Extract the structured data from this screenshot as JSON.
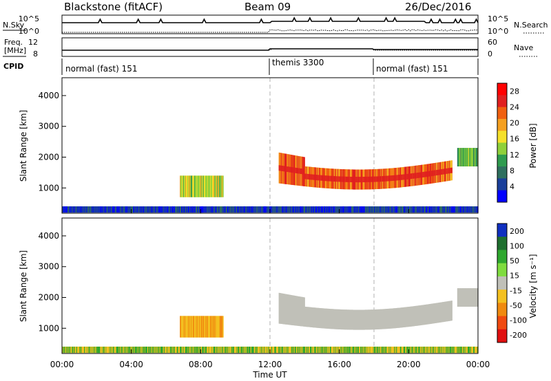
{
  "header": {
    "title": "Blackstone (fitACF)",
    "beam": "Beam 09",
    "date": "26/Dec/2016"
  },
  "top_panels": {
    "nsky_label": "N.Sky",
    "nsearch_label": "N.Search",
    "left_ticks": [
      "10^5",
      "10^0"
    ],
    "right_ticks": [
      "10^5",
      "10^0"
    ],
    "freq_label_1": "Freq.",
    "freq_label_2": "[MHz]",
    "freq_ticks": [
      "12",
      "8"
    ],
    "nave_label": "Nave",
    "nave_ticks": [
      "60",
      "0"
    ],
    "cpid_label": "CPID",
    "cpid_segments": [
      "normal (fast) 151",
      "themis 3300",
      "normal (fast) 151"
    ]
  },
  "colors": {
    "power_scale": [
      "#0000ff",
      "#1a3f9a",
      "#2e6f5e",
      "#2e9b4e",
      "#8fd03a",
      "#f5e02a",
      "#f5a020",
      "#f06010",
      "#e02020",
      "#ff0000"
    ],
    "velocity_scale": [
      "#1030c0",
      "#1f6f2f",
      "#2fa82f",
      "#7fdc3f",
      "#c0c0b8",
      "#f4c020",
      "#f08a10",
      "#f04a10",
      "#e01010"
    ]
  },
  "chart_data": [
    {
      "type": "heatmap",
      "panel": "power",
      "xlabel": "",
      "ylabel": "Slant Range [km]",
      "x_ticks": [
        "00:00",
        "04:00",
        "08:00",
        "12:00",
        "16:00",
        "20:00",
        "00:00"
      ],
      "xlim": [
        0,
        24
      ],
      "y_ticks": [
        "1000",
        "2000",
        "3000",
        "4000"
      ],
      "ylim": [
        180,
        4580
      ],
      "colorbar": {
        "label": "Power [dB]",
        "ticks": [
          "4",
          "8",
          "12",
          "16",
          "20",
          "24",
          "28"
        ],
        "range": [
          0,
          30
        ]
      },
      "regions": [
        {
          "name": "near-range clutter",
          "t": [
            0,
            24
          ],
          "range_km": [
            200,
            400
          ]
        },
        {
          "name": "morning patch",
          "t": [
            6.8,
            9.3
          ],
          "range_km": [
            700,
            1400
          ],
          "peak_db": 20
        },
        {
          "name": "evening band",
          "t": [
            12.5,
            22.5
          ],
          "range_km": [
            900,
            2200
          ],
          "peak_db": 28
        },
        {
          "name": "late patch",
          "t": [
            22.8,
            24
          ],
          "range_km": [
            1700,
            2300
          ],
          "peak_db": 16
        }
      ]
    },
    {
      "type": "heatmap",
      "panel": "velocity",
      "xlabel": "Time UT",
      "ylabel": "Slant Range [km]",
      "x_ticks": [
        "00:00",
        "04:00",
        "08:00",
        "12:00",
        "16:00",
        "20:00",
        "00:00"
      ],
      "xlim": [
        0,
        24
      ],
      "y_ticks": [
        "1000",
        "2000",
        "3000",
        "4000"
      ],
      "ylim": [
        180,
        4580
      ],
      "colorbar": {
        "label": "Velocity [m s⁻¹]",
        "ticks": [
          "200",
          "100",
          "50",
          "15",
          "-15",
          "-50",
          "-100",
          "-200"
        ],
        "range": [
          -250,
          250
        ]
      },
      "regions": [
        {
          "name": "near-range clutter",
          "t": [
            0,
            24
          ],
          "range_km": [
            200,
            400
          ]
        },
        {
          "name": "morning patch",
          "t": [
            6.8,
            9.3
          ],
          "range_km": [
            700,
            1400
          ],
          "vel": -50
        },
        {
          "name": "ground scatter band",
          "t": [
            12.5,
            22.5
          ],
          "range_km": [
            900,
            2200
          ],
          "vel": 0
        },
        {
          "name": "late patch",
          "t": [
            22.8,
            24
          ],
          "range_km": [
            1700,
            2300
          ],
          "vel": 0
        }
      ]
    }
  ]
}
